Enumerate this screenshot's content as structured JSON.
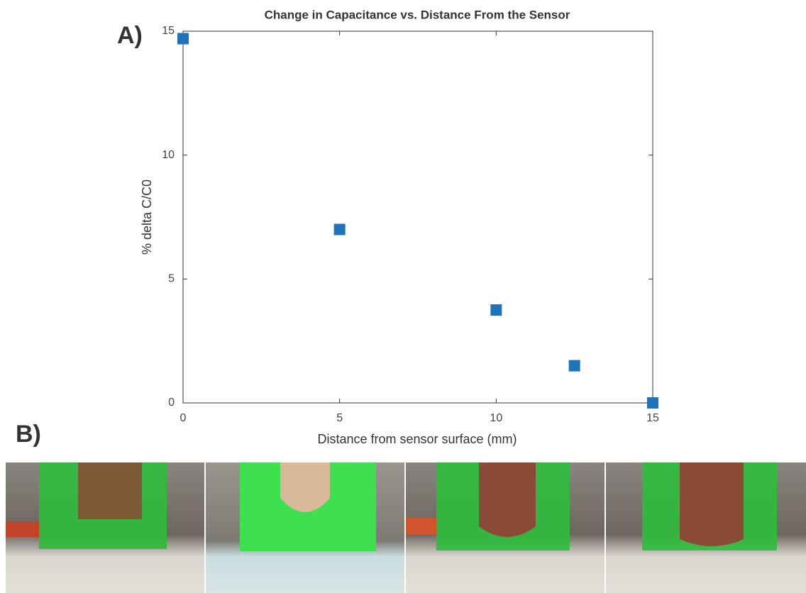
{
  "chart_data": {
    "type": "scatter",
    "title": "Change in Capacitance vs. Distance From the Sensor",
    "x_label": "Distance from sensor surface (mm)",
    "y_label": "% delta C/C0",
    "x": [
      0,
      5,
      10,
      12.5,
      15
    ],
    "values": [
      14.7,
      7,
      3.75,
      1.5,
      0
    ],
    "color": "#1f73b8",
    "marker": "square",
    "xlim": [
      0,
      15
    ],
    "xticks": [
      0,
      5,
      10,
      15
    ],
    "ylim": [
      0,
      15
    ],
    "yticks": [
      0,
      5,
      10,
      15
    ],
    "grid": false
  },
  "panel_labels": [
    "A)",
    "B)"
  ]
}
